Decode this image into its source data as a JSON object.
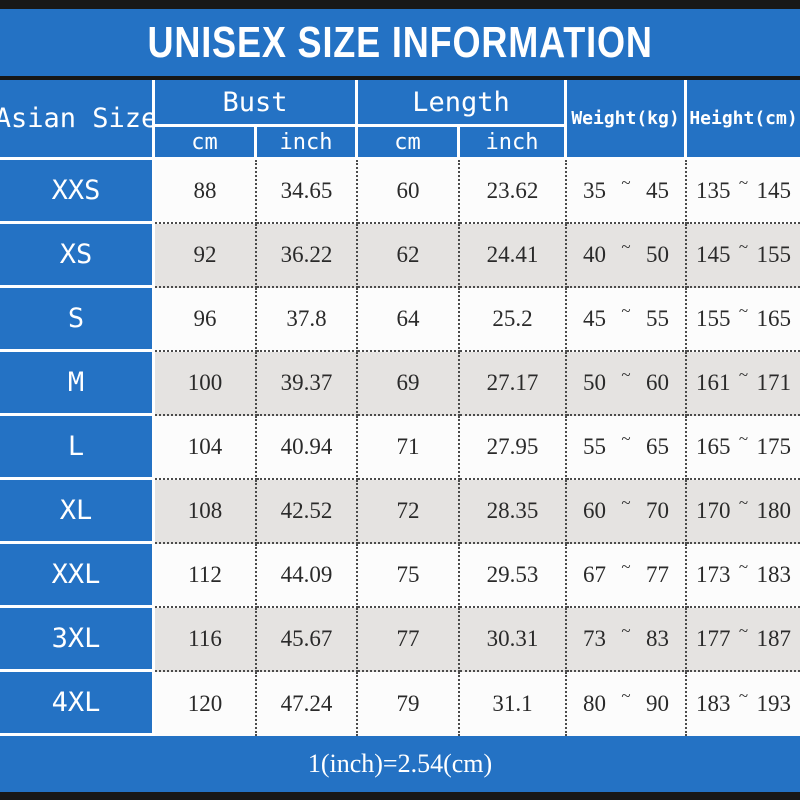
{
  "title": "UNISEX SIZE INFORMATION",
  "footer_note": "1(inch)=2.54(cm)",
  "colors": {
    "accent_blue": "#2472c4",
    "top_bottom_bar": "#181818",
    "row_white": "#fcfcfc",
    "row_gray": "#e5e3e1",
    "dotted_border": "#4b4b4b",
    "header_text": "#ffffff",
    "data_text": "#2a2a2a"
  },
  "table": {
    "corner_header": "Asian Size",
    "groups": [
      {
        "label": "Bust",
        "children": [
          "cm",
          "inch"
        ]
      },
      {
        "label": "Length",
        "children": [
          "cm",
          "inch"
        ]
      }
    ],
    "weight_header": "Weight(kg)",
    "height_header": "Height(cm)",
    "tilde": "~",
    "rows": [
      {
        "size": "XXS",
        "bust_cm": "88",
        "bust_inch": "34.65",
        "length_cm": "60",
        "length_inch": "23.62",
        "weight_min": "35",
        "weight_max": "45",
        "height_min": "135",
        "height_max": "145"
      },
      {
        "size": "XS",
        "bust_cm": "92",
        "bust_inch": "36.22",
        "length_cm": "62",
        "length_inch": "24.41",
        "weight_min": "40",
        "weight_max": "50",
        "height_min": "145",
        "height_max": "155"
      },
      {
        "size": "S",
        "bust_cm": "96",
        "bust_inch": "37.8",
        "length_cm": "64",
        "length_inch": "25.2",
        "weight_min": "45",
        "weight_max": "55",
        "height_min": "155",
        "height_max": "165"
      },
      {
        "size": "M",
        "bust_cm": "100",
        "bust_inch": "39.37",
        "length_cm": "69",
        "length_inch": "27.17",
        "weight_min": "50",
        "weight_max": "60",
        "height_min": "161",
        "height_max": "171"
      },
      {
        "size": "L",
        "bust_cm": "104",
        "bust_inch": "40.94",
        "length_cm": "71",
        "length_inch": "27.95",
        "weight_min": "55",
        "weight_max": "65",
        "height_min": "165",
        "height_max": "175"
      },
      {
        "size": "XL",
        "bust_cm": "108",
        "bust_inch": "42.52",
        "length_cm": "72",
        "length_inch": "28.35",
        "weight_min": "60",
        "weight_max": "70",
        "height_min": "170",
        "height_max": "180"
      },
      {
        "size": "XXL",
        "bust_cm": "112",
        "bust_inch": "44.09",
        "length_cm": "75",
        "length_inch": "29.53",
        "weight_min": "67",
        "weight_max": "77",
        "height_min": "173",
        "height_max": "183"
      },
      {
        "size": "3XL",
        "bust_cm": "116",
        "bust_inch": "45.67",
        "length_cm": "77",
        "length_inch": "30.31",
        "weight_min": "73",
        "weight_max": "83",
        "height_min": "177",
        "height_max": "187"
      },
      {
        "size": "4XL",
        "bust_cm": "120",
        "bust_inch": "47.24",
        "length_cm": "79",
        "length_inch": "31.1",
        "weight_min": "80",
        "weight_max": "90",
        "height_min": "183",
        "height_max": "193"
      }
    ]
  }
}
